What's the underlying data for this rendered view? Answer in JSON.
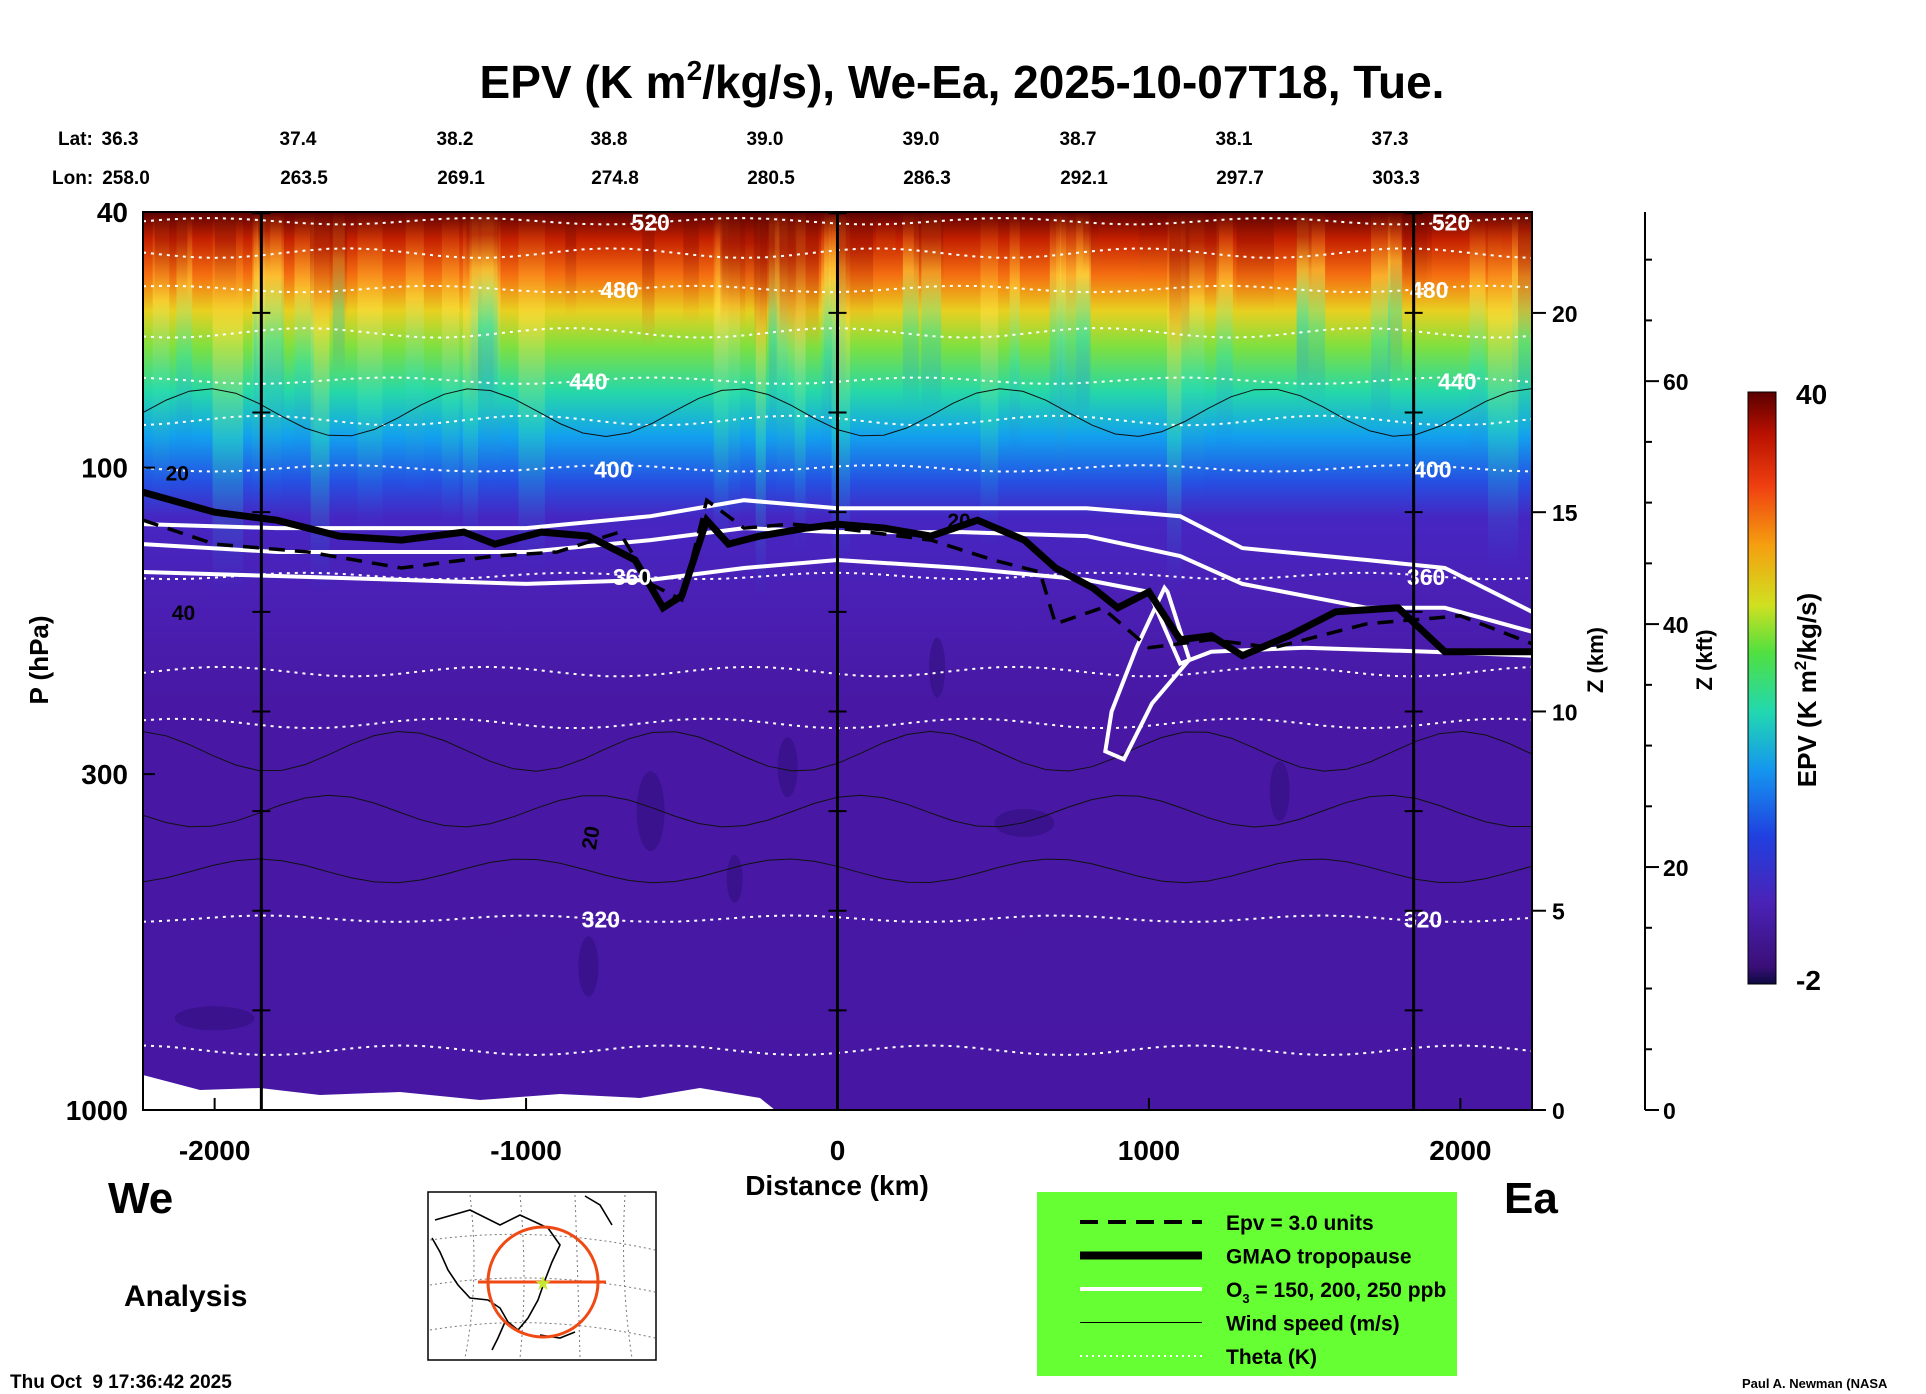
{
  "chart_data": {
    "type": "heatmap",
    "title_main": "EPV (K m",
    "title_sup": "2",
    "title_rest": "/kg/s), We-Ea, 2025-10-07T18, Tue.",
    "lat_label": "Lat:",
    "lon_label": "Lon:",
    "lats": [
      "36.3",
      "37.4",
      "38.2",
      "38.8",
      "39.0",
      "39.0",
      "38.7",
      "38.1",
      "37.3"
    ],
    "lons": [
      "258.0",
      "263.5",
      "269.1",
      "274.8",
      "280.5",
      "286.3",
      "292.1",
      "297.7",
      "303.3"
    ],
    "xlabel": "Distance (km)",
    "ylabel": "P (hPa)",
    "xlim": [
      -2230,
      2230
    ],
    "x_ticks": [
      -2000,
      -1000,
      0,
      1000,
      2000
    ],
    "x_tick_labels": [
      "-2000",
      "-1000",
      "0",
      "1000",
      "2000"
    ],
    "vertical_lines_km": [
      -1850,
      0,
      1850
    ],
    "ylim_hpa": [
      1000,
      40
    ],
    "p_ticks": [
      40,
      100,
      300,
      1000
    ],
    "p_tick_labels": [
      "40",
      "100",
      "300",
      "1000"
    ],
    "z_km_ticks": [
      0,
      5,
      10,
      15,
      20
    ],
    "z_km_tick_labels": [
      "0",
      "5",
      "10",
      "15",
      "20"
    ],
    "z_km_label": "Z (km)",
    "z_kft_ticks": [
      0,
      20,
      40,
      60
    ],
    "z_kft_tick_labels": [
      "0",
      "20",
      "40",
      "60"
    ],
    "z_kft_label": "Z (kft)",
    "colorbar": {
      "label_pre": "EPV (K m",
      "label_sup": "2",
      "label_post": "/kg/s)",
      "max_label": "40",
      "min_label": "-2",
      "range": [
        -2,
        40
      ]
    },
    "theta_contours": [
      {
        "label": "520",
        "z_km": 22.3
      },
      {
        "label": "480",
        "z_km": 20.6
      },
      {
        "label": "440",
        "z_km": 18.3
      },
      {
        "label": "400",
        "z_km": 16.1
      },
      {
        "label": "360",
        "z_km": 13.4
      },
      {
        "label": "320",
        "z_km": 4.8
      }
    ],
    "extra_theta_z_km": [
      21.5,
      19.5,
      17.3,
      11.0,
      9.7,
      1.5
    ],
    "wind_labels": [
      "20",
      "40",
      "20",
      "20"
    ],
    "tropopause_km": [
      [
        -2230,
        15.5
      ],
      [
        -2000,
        15.0
      ],
      [
        -1800,
        14.8
      ],
      [
        -1600,
        14.4
      ],
      [
        -1400,
        14.3
      ],
      [
        -1200,
        14.5
      ],
      [
        -1100,
        14.2
      ],
      [
        -950,
        14.5
      ],
      [
        -800,
        14.4
      ],
      [
        -650,
        13.8
      ],
      [
        -560,
        12.6
      ],
      [
        -500,
        12.9
      ],
      [
        -420,
        14.8
      ],
      [
        -350,
        14.2
      ],
      [
        -250,
        14.4
      ],
      [
        -100,
        14.6
      ],
      [
        0,
        14.7
      ],
      [
        150,
        14.6
      ],
      [
        300,
        14.4
      ],
      [
        450,
        14.8
      ],
      [
        600,
        14.3
      ],
      [
        700,
        13.6
      ],
      [
        820,
        13.1
      ],
      [
        900,
        12.6
      ],
      [
        1000,
        13.0
      ],
      [
        1100,
        11.8
      ],
      [
        1200,
        11.9
      ],
      [
        1300,
        11.4
      ],
      [
        1450,
        11.9
      ],
      [
        1600,
        12.5
      ],
      [
        1800,
        12.6
      ],
      [
        1950,
        11.5
      ],
      [
        2230,
        11.5
      ]
    ],
    "ozone_150_km": [
      [
        -2230,
        14.7
      ],
      [
        -1800,
        14.6
      ],
      [
        -1400,
        14.6
      ],
      [
        -1000,
        14.6
      ],
      [
        -600,
        14.9
      ],
      [
        -300,
        15.3
      ],
      [
        0,
        15.1
      ],
      [
        400,
        15.1
      ],
      [
        800,
        15.1
      ],
      [
        1100,
        14.9
      ],
      [
        1300,
        14.1
      ],
      [
        1700,
        13.8
      ],
      [
        1950,
        13.6
      ],
      [
        2230,
        12.5
      ]
    ],
    "ozone_200_km": [
      [
        -2230,
        14.2
      ],
      [
        -1800,
        14.0
      ],
      [
        -1400,
        14.0
      ],
      [
        -1000,
        14.0
      ],
      [
        -600,
        14.3
      ],
      [
        -300,
        14.6
      ],
      [
        0,
        14.5
      ],
      [
        400,
        14.5
      ],
      [
        800,
        14.4
      ],
      [
        1100,
        13.9
      ],
      [
        1300,
        13.2
      ],
      [
        1700,
        12.6
      ],
      [
        1950,
        12.6
      ],
      [
        2230,
        12.0
      ]
    ],
    "ozone_250_km": [
      [
        -2230,
        13.5
      ],
      [
        -1800,
        13.4
      ],
      [
        -1400,
        13.3
      ],
      [
        -1000,
        13.2
      ],
      [
        -600,
        13.3
      ],
      [
        -300,
        13.6
      ],
      [
        0,
        13.8
      ],
      [
        400,
        13.6
      ],
      [
        800,
        13.3
      ],
      [
        1000,
        13.0
      ],
      [
        1100,
        11.2
      ],
      [
        1200,
        11.5
      ],
      [
        1500,
        11.6
      ],
      [
        1900,
        11.5
      ],
      [
        2230,
        11.4
      ]
    ],
    "ozone_lobe_km": [
      [
        1050,
        13.1
      ],
      [
        960,
        11.6
      ],
      [
        880,
        10.0
      ],
      [
        860,
        9.0
      ],
      [
        920,
        8.8
      ],
      [
        1010,
        10.2
      ],
      [
        1130,
        11.3
      ],
      [
        1060,
        13.0
      ]
    ],
    "epv3_km": [
      [
        -2230,
        14.8
      ],
      [
        -2000,
        14.2
      ],
      [
        -1700,
        14.0
      ],
      [
        -1400,
        13.6
      ],
      [
        -1100,
        13.9
      ],
      [
        -900,
        14.0
      ],
      [
        -700,
        14.5
      ],
      [
        -600,
        13.2
      ],
      [
        -500,
        12.8
      ],
      [
        -420,
        15.3
      ],
      [
        -300,
        14.6
      ],
      [
        -150,
        14.7
      ],
      [
        0,
        14.6
      ],
      [
        300,
        14.3
      ],
      [
        500,
        13.8
      ],
      [
        650,
        13.5
      ],
      [
        700,
        12.2
      ],
      [
        850,
        12.6
      ],
      [
        1000,
        11.6
      ],
      [
        1200,
        11.8
      ],
      [
        1400,
        11.6
      ],
      [
        1700,
        12.2
      ],
      [
        2000,
        12.4
      ],
      [
        2230,
        11.7
      ]
    ],
    "legend": [
      {
        "style": "dashed",
        "label": "Epv = 3.0 units"
      },
      {
        "style": "thick",
        "label": "GMAO tropopause"
      },
      {
        "style": "white",
        "label_pre": "O",
        "label_sub": "3",
        "label_post": " = 150, 200, 250 ppb"
      },
      {
        "style": "thin",
        "label": "Wind speed (m/s)"
      },
      {
        "style": "dotted",
        "label": "Theta (K)"
      }
    ],
    "left_label": "We",
    "right_label": "Ea",
    "analysis_label": "Analysis",
    "timestamp": "Thu Oct  9 17:36:42 2025",
    "credit": "Paul A. Newman (NASA"
  }
}
